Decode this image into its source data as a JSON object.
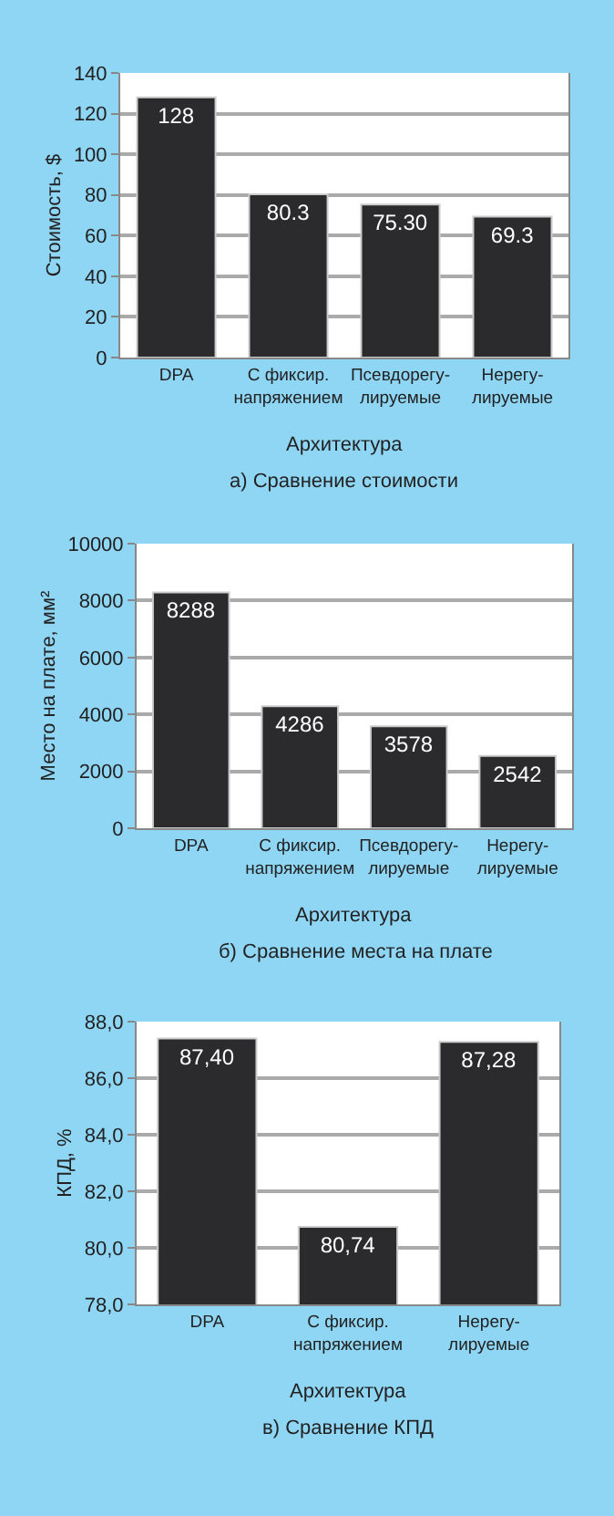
{
  "chart_data": [
    {
      "type": "bar",
      "title": "а) Сравнение стоимости",
      "xlabel": "Архитектура",
      "ylabel": "Стоимость, $",
      "categories": [
        "DPA",
        "С фиксир.\nнапряжением",
        "Псевдорегу-\nлируемые",
        "Нерегу-\nлируемые"
      ],
      "values": [
        128,
        80.3,
        75.3,
        69.3
      ],
      "value_labels": [
        "128",
        "80.3",
        "75.30",
        "69.3"
      ],
      "color": "#2b2b2e",
      "ylim": [
        0,
        140
      ],
      "yticks": [
        0,
        20,
        40,
        60,
        80,
        100,
        120,
        140
      ],
      "grid": "y"
    },
    {
      "type": "bar",
      "title": "б) Сравнение места на плате",
      "xlabel": "Архитектура",
      "ylabel": "Место на плате, мм²",
      "categories": [
        "DPA",
        "С фиксир.\nнапряжением",
        "Псевдорегу-\nлируемые",
        "Нерегу-\nлируемые"
      ],
      "values": [
        8288,
        4286,
        3578,
        2542
      ],
      "data_labels": true,
      "color": "#2b2b2e",
      "ylim": [
        0,
        10000
      ],
      "yticks": [
        0,
        2000,
        4000,
        6000,
        8000,
        10000
      ],
      "grid": "y"
    },
    {
      "type": "bar",
      "title": "в) Сравнение КПД",
      "xlabel": "Архитектура",
      "ylabel": "КПД, %",
      "categories": [
        "DPA",
        "С фиксир.\nнапряжением",
        "Нерегу-\nлируемые"
      ],
      "values": [
        87.4,
        80.74,
        87.28
      ],
      "value_labels": [
        "87,40",
        "80,74",
        "87,28"
      ],
      "color": "#2b2b2e",
      "ylim": [
        78,
        88
      ],
      "yticks": [
        {
          "value": 78,
          "label": "78,0"
        },
        {
          "value": 80,
          "label": "80,0"
        },
        {
          "value": 82,
          "label": "82,0"
        },
        {
          "value": 84,
          "label": "84,0"
        },
        {
          "value": 86,
          "label": "86,0"
        },
        {
          "value": 88,
          "label": "88,0"
        }
      ],
      "grid": "y"
    }
  ]
}
